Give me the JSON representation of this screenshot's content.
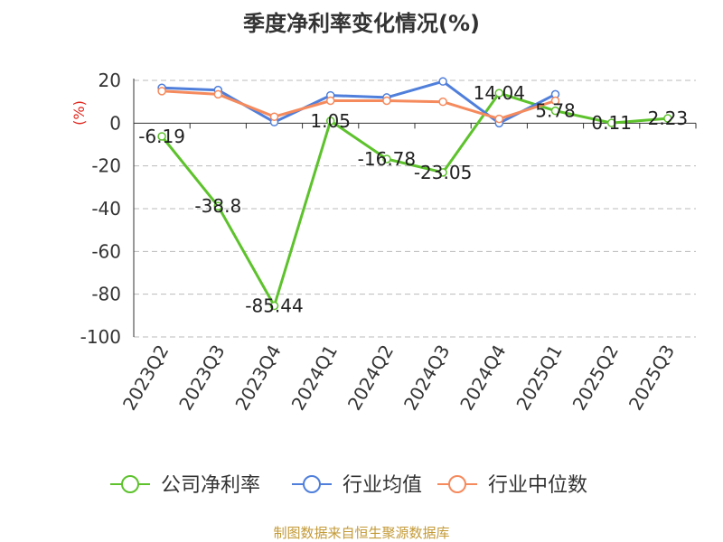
{
  "chart_data": {
    "type": "line",
    "title": "季度净利率变化情况(%)",
    "ylabel": "(%)",
    "ylim": [
      -100,
      20
    ],
    "yticks": [
      20,
      0,
      -20,
      -40,
      -60,
      -80,
      -100
    ],
    "grid": true,
    "legend_position": "bottom",
    "categories": [
      "2023Q2",
      "2023Q3",
      "2023Q4",
      "2024Q1",
      "2024Q2",
      "2024Q3",
      "2024Q4",
      "2025Q1",
      "2025Q2",
      "2025Q3"
    ],
    "series": [
      {
        "name": "公司净利率",
        "color": "#5dc22c",
        "values": [
          -6.19,
          -38.8,
          -85.44,
          1.05,
          -16.78,
          -23.05,
          14.04,
          5.78,
          0.11,
          2.23
        ],
        "labels": [
          "-6.19",
          "-38.8",
          "-85.44",
          "1.05",
          "-16.78",
          "-23.05",
          "14.04",
          "5.78",
          "0.11",
          "2.23"
        ]
      },
      {
        "name": "行业均值",
        "color": "#4f7fdb",
        "values": [
          16.5,
          15.5,
          0.5,
          13.0,
          12.0,
          19.5,
          0.0,
          13.5,
          null,
          null
        ]
      },
      {
        "name": "行业中位数",
        "color": "#f58a5d",
        "values": [
          15.0,
          13.5,
          3.0,
          10.5,
          10.5,
          10.0,
          2.0,
          10.5,
          null,
          null
        ]
      }
    ]
  },
  "source_text": "制图数据来自恒生聚源数据库",
  "colors": {
    "axis_label": "#e0261d",
    "source": "#c39a37",
    "grid": "#bbbbbb",
    "axis": "#333333"
  }
}
